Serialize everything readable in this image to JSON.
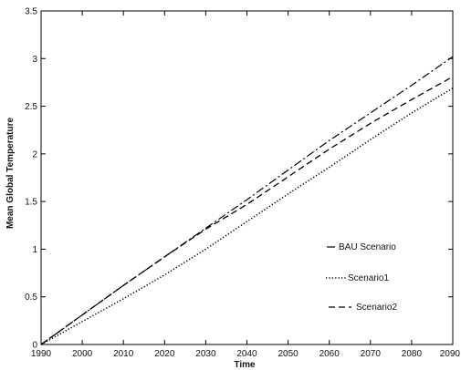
{
  "chart_data": {
    "type": "line",
    "title": "",
    "xlabel": "Time",
    "ylabel": "Mean Global Temperature",
    "xlim": [
      1990,
      2090
    ],
    "ylim": [
      0,
      3.5
    ],
    "x_ticks": [
      1990,
      2000,
      2010,
      2020,
      2030,
      2040,
      2050,
      2060,
      2070,
      2080,
      2090
    ],
    "y_ticks": [
      0,
      0.5,
      1,
      1.5,
      2,
      2.5,
      3,
      3.5
    ],
    "grid": false,
    "legend_position": "right",
    "x": [
      1990,
      2000,
      2010,
      2020,
      2030,
      2040,
      2050,
      2060,
      2070,
      2080,
      2090
    ],
    "series": [
      {
        "name": "BAU Scenario",
        "style": "dashdot",
        "color": "#000000",
        "values": [
          0.0,
          0.31,
          0.62,
          0.92,
          1.22,
          1.52,
          1.83,
          2.14,
          2.43,
          2.72,
          3.02
        ]
      },
      {
        "name": "Scenario1",
        "style": "dotted",
        "color": "#000000",
        "values": [
          0.0,
          0.24,
          0.48,
          0.73,
          1.0,
          1.29,
          1.58,
          1.86,
          2.15,
          2.43,
          2.69
        ]
      },
      {
        "name": "Scenario2",
        "style": "dashed",
        "color": "#000000",
        "values": [
          0.0,
          0.31,
          0.62,
          0.92,
          1.21,
          1.47,
          1.76,
          2.05,
          2.32,
          2.57,
          2.81
        ]
      }
    ]
  }
}
